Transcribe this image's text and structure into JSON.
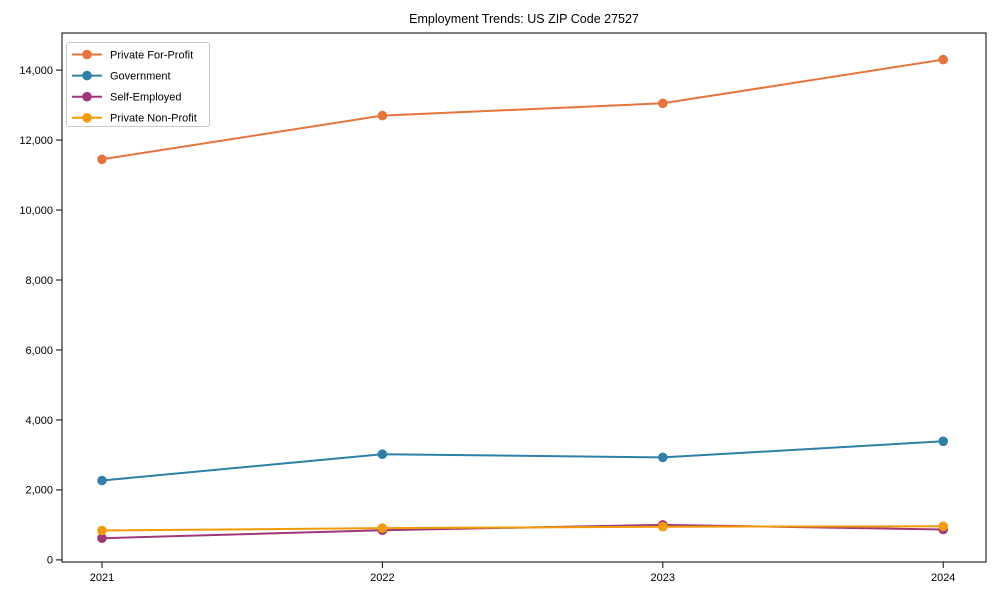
{
  "chart_data": {
    "type": "line",
    "title": "Employment Trends: US ZIP Code 27527",
    "xlabel": "",
    "ylabel": "",
    "categories": [
      "2021",
      "2022",
      "2023",
      "2024"
    ],
    "x_tick_labels": [
      "2021",
      "2022",
      "2023",
      "2024"
    ],
    "y_ticks": [
      0,
      2000,
      4000,
      6000,
      8000,
      10000,
      12000,
      14000
    ],
    "y_tick_labels": [
      "0",
      "2,000",
      "4,000",
      "6,000",
      "8,000",
      "10,000",
      "12,000",
      "14,000"
    ],
    "ylim": [
      -60,
      15060
    ],
    "grid": false,
    "marker": "circle",
    "legend_position": "upper left",
    "series": [
      {
        "name": "Private For-Profit",
        "color": "#E6743C",
        "values": [
          11450,
          12700,
          13050,
          14300
        ]
      },
      {
        "name": "Government",
        "color": "#2E80A6",
        "values": [
          2270,
          3020,
          2930,
          3390
        ]
      },
      {
        "name": "Self-Employed",
        "color": "#A0377A",
        "values": [
          620,
          850,
          1000,
          870
        ]
      },
      {
        "name": "Private Non-Profit",
        "color": "#F29B06",
        "values": [
          840,
          910,
          950,
          960
        ]
      }
    ]
  },
  "styles": {
    "background": "#ffffff",
    "spine_color": "#000000",
    "tick_text_color": "#000000",
    "legend_border_color": "#c9c9c9",
    "legend_background": "#ffffff"
  }
}
